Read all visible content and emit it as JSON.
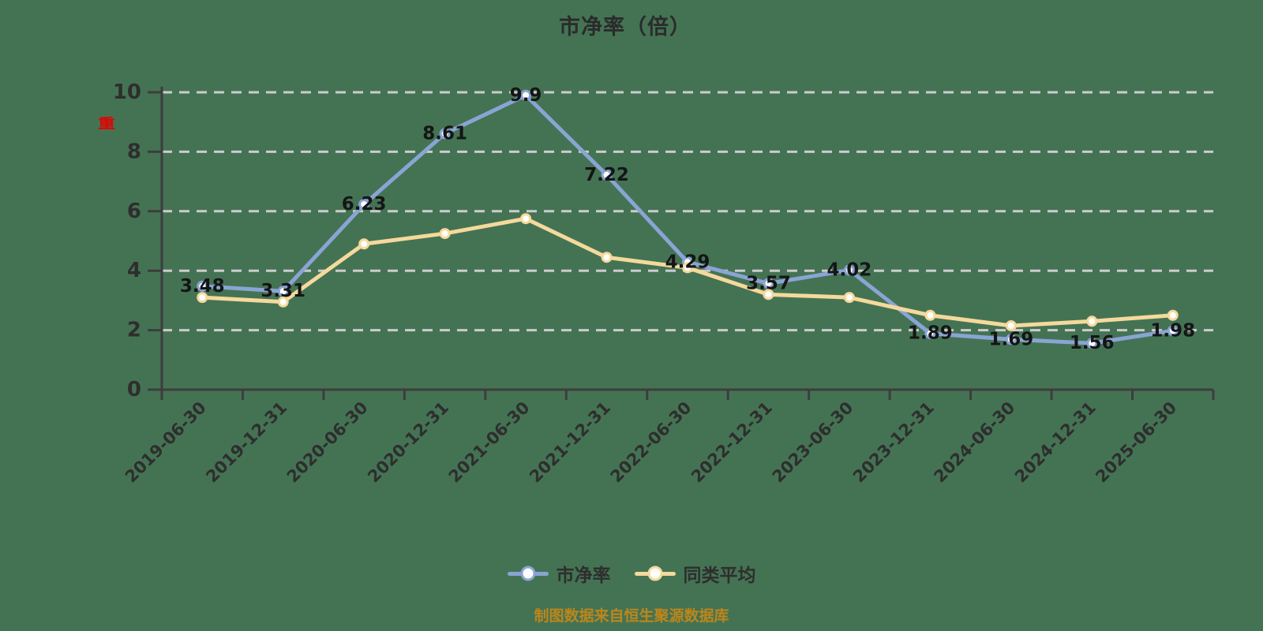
{
  "title": "市净率（倍）",
  "red_axis_marker": "重",
  "footer_note": "制图数据来自恒生聚源数据库",
  "colors": {
    "background": "#447354",
    "grid": "#cccccc",
    "axis": "#3d3d3d",
    "tick_label": "#2e2e2e",
    "title": "#2b2b2b",
    "data_label": "#151515",
    "series_pb": "#8aa4d4",
    "series_avg": "#f5d99c",
    "footer": "#bd861a",
    "red_marker": "#e60000",
    "point_fill": "#ffffff"
  },
  "legend": {
    "items": [
      {
        "label": "市净率",
        "color": "#8aa4d4"
      },
      {
        "label": "同类平均",
        "color": "#f5d99c"
      }
    ]
  },
  "chart_data": {
    "type": "line",
    "title": "市净率（倍）",
    "x": [
      "2019-06-30",
      "2019-12-31",
      "2020-06-30",
      "2020-12-31",
      "2021-06-30",
      "2021-12-31",
      "2022-06-30",
      "2022-12-31",
      "2023-06-30",
      "2023-12-31",
      "2024-06-30",
      "2024-12-31",
      "2025-06-30"
    ],
    "series": [
      {
        "name": "市净率",
        "color": "#8aa4d4",
        "show_labels": true,
        "values": [
          3.48,
          3.31,
          6.23,
          8.61,
          9.9,
          7.22,
          4.29,
          3.57,
          4.02,
          1.89,
          1.69,
          1.56,
          1.98
        ]
      },
      {
        "name": "同类平均",
        "color": "#f5d99c",
        "show_labels": false,
        "values": [
          3.1,
          2.95,
          4.9,
          5.25,
          5.75,
          4.45,
          4.1,
          3.2,
          3.1,
          2.5,
          2.15,
          2.3,
          2.5
        ]
      }
    ],
    "ylim": [
      0,
      10
    ],
    "yticks": [
      0,
      2,
      4,
      6,
      8,
      10
    ],
    "grid": "horizontal-dashed",
    "xlabel": "",
    "ylabel": "",
    "x_label_rotation": 45,
    "legend_position": "bottom"
  }
}
